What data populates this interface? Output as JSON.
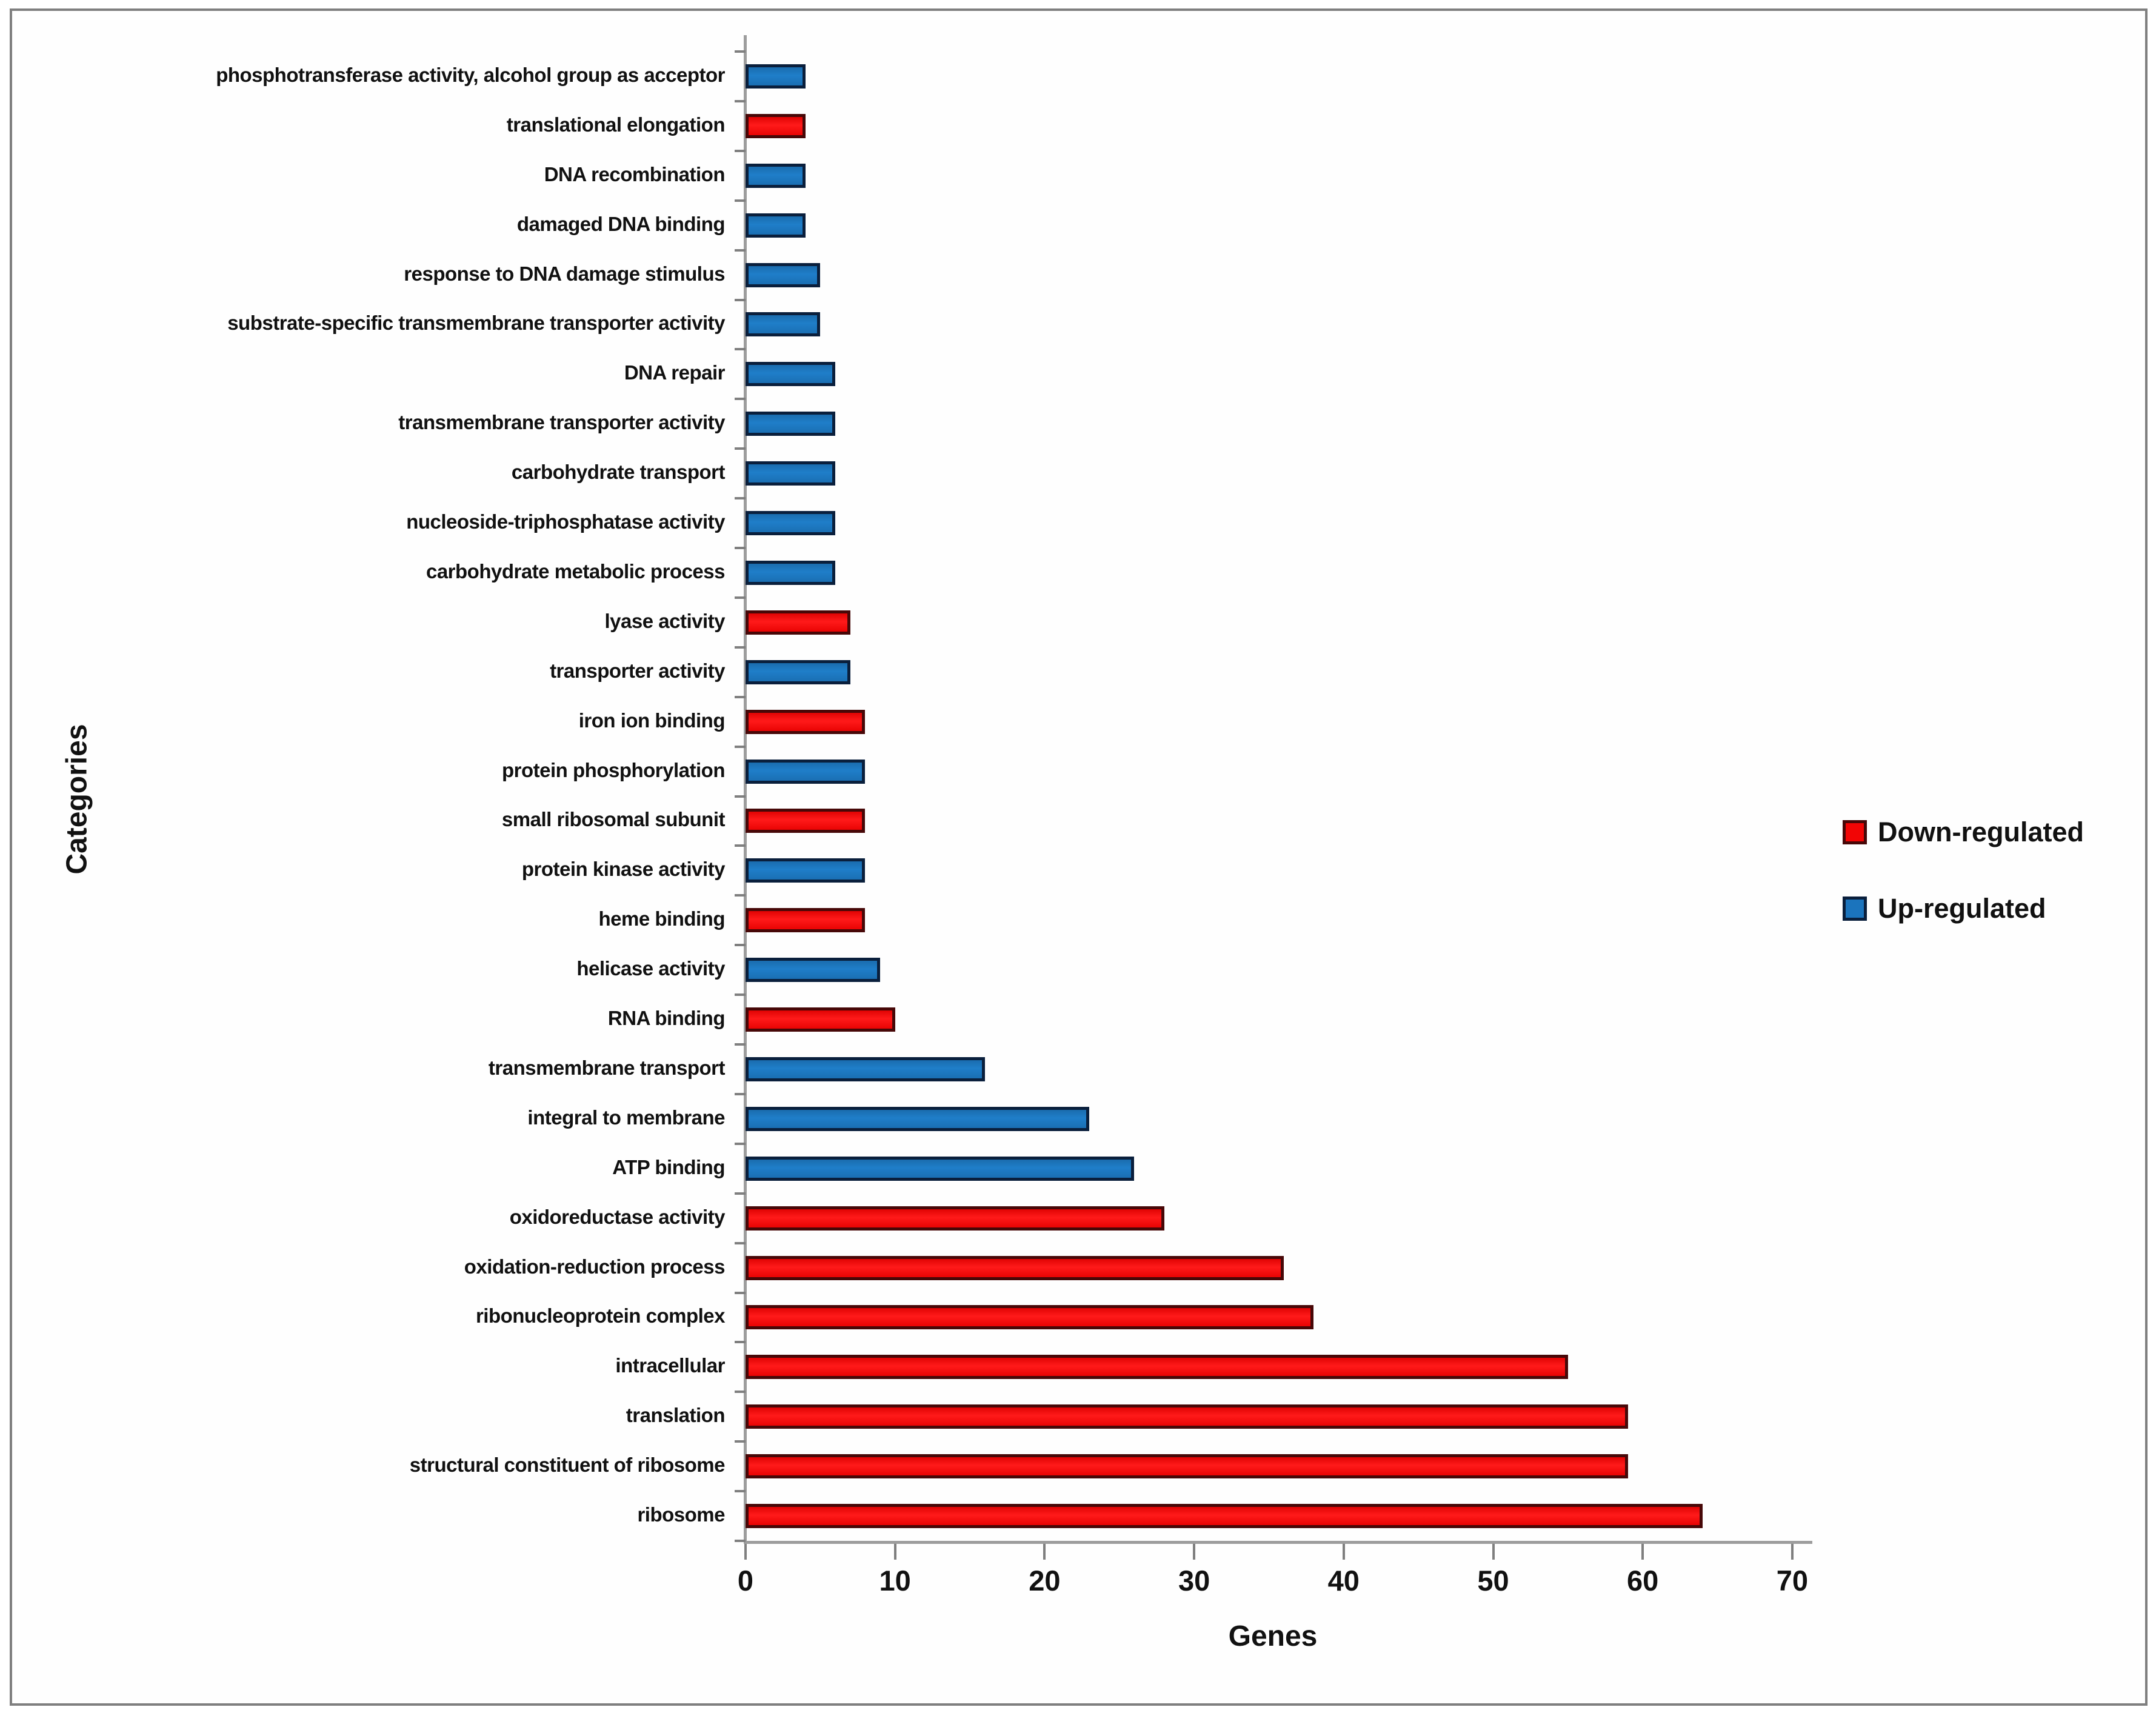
{
  "chart_data": {
    "type": "bar",
    "orientation": "horizontal",
    "title": "",
    "xlabel": "Genes",
    "ylabel": "Categories",
    "xlim": [
      0,
      70
    ],
    "xticks": [
      0,
      10,
      20,
      30,
      40,
      50,
      60,
      70
    ],
    "grid": false,
    "legend_position": "right",
    "legend": [
      {
        "label": "Down-regulated",
        "color": "#f20505",
        "border": "#470808",
        "series": "down"
      },
      {
        "label": "Up-regulated",
        "color": "#1b74bd",
        "border": "#0a1f3c",
        "series": "up"
      }
    ],
    "colors": {
      "down_fill": "#f20505",
      "down_border": "#470808",
      "up_fill": "#1b74bd",
      "up_border": "#0a1f3c",
      "axis": "#9d9d9d",
      "tick": "#7f7f7f",
      "frame": "#7f7f7f",
      "text": "#111111"
    },
    "bars": [
      {
        "label": "phosphotransferase activity, alcohol group as acceptor",
        "value": 4,
        "series": "up"
      },
      {
        "label": "translational elongation",
        "value": 4,
        "series": "down"
      },
      {
        "label": "DNA recombination",
        "value": 4,
        "series": "up"
      },
      {
        "label": "damaged DNA binding",
        "value": 4,
        "series": "up"
      },
      {
        "label": "response to DNA damage stimulus",
        "value": 5,
        "series": "up"
      },
      {
        "label": "substrate-specific transmembrane transporter activity",
        "value": 5,
        "series": "up"
      },
      {
        "label": "DNA repair",
        "value": 6,
        "series": "up"
      },
      {
        "label": "transmembrane transporter activity",
        "value": 6,
        "series": "up"
      },
      {
        "label": "carbohydrate transport",
        "value": 6,
        "series": "up"
      },
      {
        "label": "nucleoside-triphosphatase activity",
        "value": 6,
        "series": "up"
      },
      {
        "label": "carbohydrate metabolic process",
        "value": 6,
        "series": "up"
      },
      {
        "label": "lyase activity",
        "value": 7,
        "series": "down"
      },
      {
        "label": "transporter activity",
        "value": 7,
        "series": "up"
      },
      {
        "label": "iron ion binding",
        "value": 8,
        "series": "down"
      },
      {
        "label": "protein phosphorylation",
        "value": 8,
        "series": "up"
      },
      {
        "label": "small ribosomal subunit",
        "value": 8,
        "series": "down"
      },
      {
        "label": "protein kinase activity",
        "value": 8,
        "series": "up"
      },
      {
        "label": "heme binding",
        "value": 8,
        "series": "down"
      },
      {
        "label": "helicase activity",
        "value": 9,
        "series": "up"
      },
      {
        "label": "RNA binding",
        "value": 10,
        "series": "down"
      },
      {
        "label": "transmembrane transport",
        "value": 16,
        "series": "up"
      },
      {
        "label": "integral to membrane",
        "value": 23,
        "series": "up"
      },
      {
        "label": "ATP binding",
        "value": 26,
        "series": "up"
      },
      {
        "label": "oxidoreductase activity",
        "value": 28,
        "series": "down"
      },
      {
        "label": "oxidation-reduction process",
        "value": 36,
        "series": "down"
      },
      {
        "label": "ribonucleoprotein complex",
        "value": 38,
        "series": "down"
      },
      {
        "label": "intracellular",
        "value": 55,
        "series": "down"
      },
      {
        "label": "translation",
        "value": 59,
        "series": "down"
      },
      {
        "label": "structural constituent of ribosome",
        "value": 59,
        "series": "down"
      },
      {
        "label": "ribosome",
        "value": 64,
        "series": "down"
      }
    ]
  }
}
